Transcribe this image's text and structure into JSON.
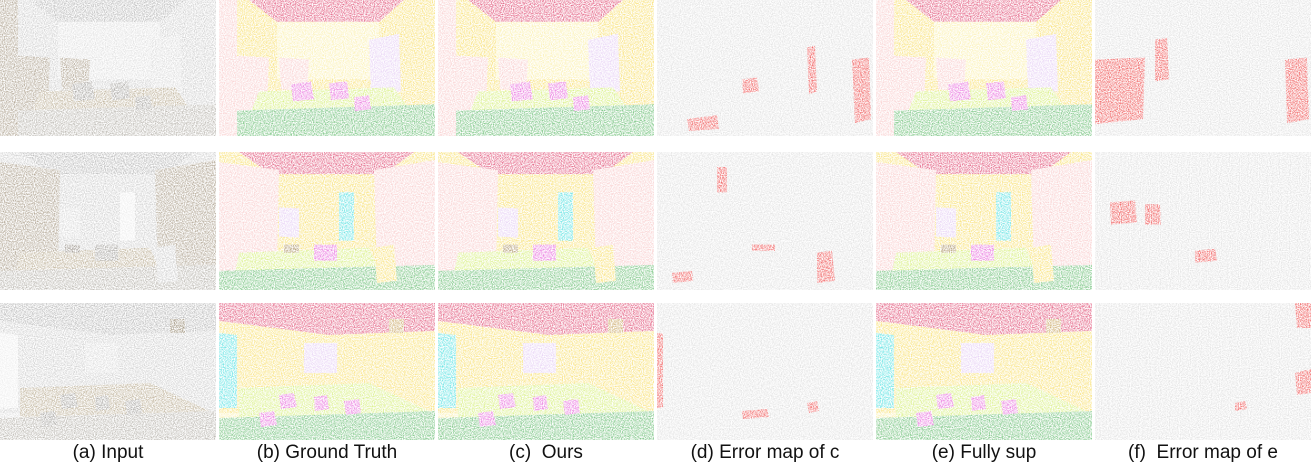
{
  "figure": {
    "captions": [
      "(a) Input",
      "(b) Ground Truth",
      "(c)  Ours",
      "(d) Error map of c",
      "(e) Fully sup",
      "(f)  Error map of e"
    ],
    "colors": {
      "ceiling": "#d6194a",
      "wall": "#f5d33a",
      "wall_light": "#f8e98a",
      "bookcase": "#f6b9b9",
      "board": "#dcbcf0",
      "floor": "#3daa4a",
      "table": "#c6e84a",
      "chair": "#e03bd0",
      "window": "#1fd7d7",
      "door": "#b5852a",
      "clutter": "#8b6a2b",
      "correct": "#d3d3d3",
      "error": "#e81414"
    }
  }
}
